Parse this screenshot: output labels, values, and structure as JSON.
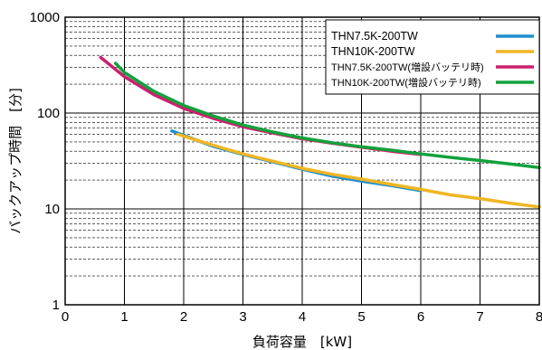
{
  "chart_data": {
    "type": "line",
    "xlabel": "負荷容量　[kW]",
    "ylabel": "バックアップ時間　[分]",
    "xlim": [
      0,
      8
    ],
    "ylim": [
      1,
      1000
    ],
    "y_scale": "log",
    "grid": true,
    "legend_position": "top-right",
    "x_ticks": [
      "0",
      "1",
      "2",
      "3",
      "4",
      "5",
      "6",
      "7",
      "8"
    ],
    "y_ticks": [
      {
        "value": 1,
        "label": "1"
      },
      {
        "value": 10,
        "label": "10"
      },
      {
        "value": 100,
        "label": "100"
      },
      {
        "value": 1000,
        "label": "1000"
      }
    ],
    "series": [
      {
        "name": "THN7.5K-200TW",
        "color": "#1f8fd0",
        "x": [
          1.8,
          2.5,
          3,
          3.5,
          4,
          4.5,
          5,
          5.5,
          6
        ],
        "y": [
          65,
          45,
          37,
          31,
          26,
          22,
          19.5,
          17.5,
          15.5
        ]
      },
      {
        "name": "THN10K-200TW",
        "color": "#f0b622",
        "x": [
          1.9,
          2.5,
          3,
          3.5,
          4,
          4.5,
          5,
          5.5,
          6,
          6.5,
          7,
          7.5,
          8
        ],
        "y": [
          60,
          46,
          37.5,
          31.5,
          26.5,
          23,
          20.5,
          18,
          16,
          14,
          12.8,
          11.5,
          10.5
        ]
      },
      {
        "name": "THN7.5K-200TW(増設バッテリ時)",
        "color": "#cc1f6d",
        "x": [
          0.6,
          1,
          1.5,
          2,
          2.5,
          3,
          3.5,
          4,
          4.5,
          5,
          5.5,
          6
        ],
        "y": [
          380,
          240,
          155,
          112,
          88,
          72,
          62,
          54,
          48.5,
          44,
          40,
          37
        ]
      },
      {
        "name": "THN10K-200TW(増設バッテリ時)",
        "color": "#12a23b",
        "x": [
          0.85,
          1,
          1.5,
          2,
          2.5,
          3,
          3.5,
          4,
          4.5,
          5,
          5.5,
          6,
          6.5,
          7,
          7.5,
          8
        ],
        "y": [
          330,
          265,
          168,
          120,
          93,
          75,
          63.5,
          55,
          49,
          44.5,
          41,
          37.5,
          34.5,
          32,
          29.5,
          27
        ]
      }
    ]
  }
}
